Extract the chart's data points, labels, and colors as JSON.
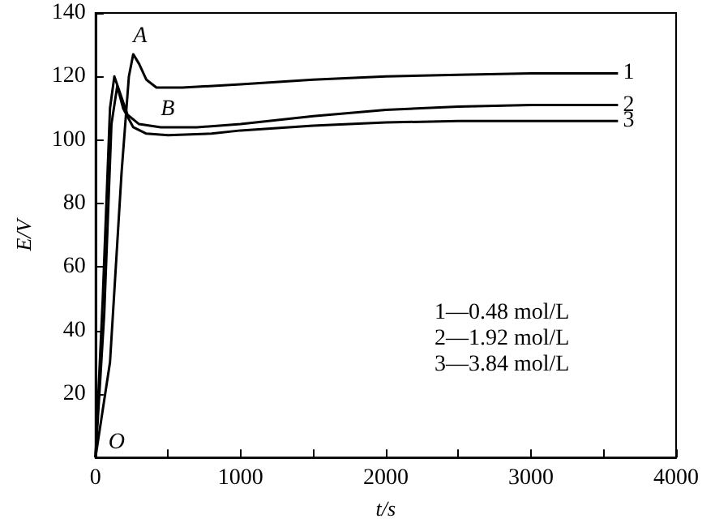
{
  "chart_data": {
    "type": "line",
    "xlabel": "t/s",
    "ylabel": "E/V",
    "marker": "none",
    "line_style": "solid",
    "grid": false,
    "legend": false,
    "xlim": [
      0,
      4000
    ],
    "xticks": [
      0,
      {
        "value": 500,
        "label": null
      },
      1000,
      {
        "value": 1500,
        "label": null
      },
      2000,
      {
        "value": 2500,
        "label": null
      },
      3000,
      {
        "value": 3500,
        "label": null
      },
      4000
    ],
    "ylim": [
      0,
      140
    ],
    "yticks": [
      {
        "value": 0,
        "label": null
      },
      20,
      40,
      60,
      80,
      100,
      120,
      140
    ],
    "series": [
      {
        "name": "1",
        "color": "#000000",
        "x": [
          0,
          100,
          180,
          230,
          260,
          300,
          350,
          420,
          600,
          1000,
          1500,
          2000,
          2500,
          3000,
          3600
        ],
        "values": [
          0,
          30,
          90,
          120,
          127,
          124,
          119,
          116.5,
          116.5,
          117.5,
          119,
          120,
          120.5,
          121,
          121
        ]
      },
      {
        "name": "2",
        "color": "#000000",
        "x": [
          0,
          50,
          100,
          130,
          160,
          220,
          300,
          450,
          700,
          1000,
          1500,
          2000,
          2500,
          3000,
          3600
        ],
        "values": [
          0,
          50,
          110,
          120,
          116,
          108,
          105,
          104,
          104,
          105,
          107.5,
          109.5,
          110.5,
          111,
          111
        ]
      },
      {
        "name": "3",
        "color": "#000000",
        "x": [
          0,
          60,
          110,
          150,
          190,
          260,
          350,
          500,
          800,
          1000,
          1500,
          2000,
          2500,
          3000,
          3600
        ],
        "values": [
          0,
          45,
          105,
          117,
          110,
          104,
          102,
          101.5,
          102,
          103,
          104.5,
          105.5,
          106,
          106,
          106
        ]
      }
    ],
    "annotations": [
      {
        "text": "A",
        "x": 260,
        "y": 127
      },
      {
        "text": "B",
        "x": 450,
        "y": 104
      },
      {
        "text": "O",
        "x": 0,
        "y": 0
      },
      "1—0.48 mol/L",
      "2—1.92 mol/L",
      "3—3.84 mol/L"
    ]
  }
}
